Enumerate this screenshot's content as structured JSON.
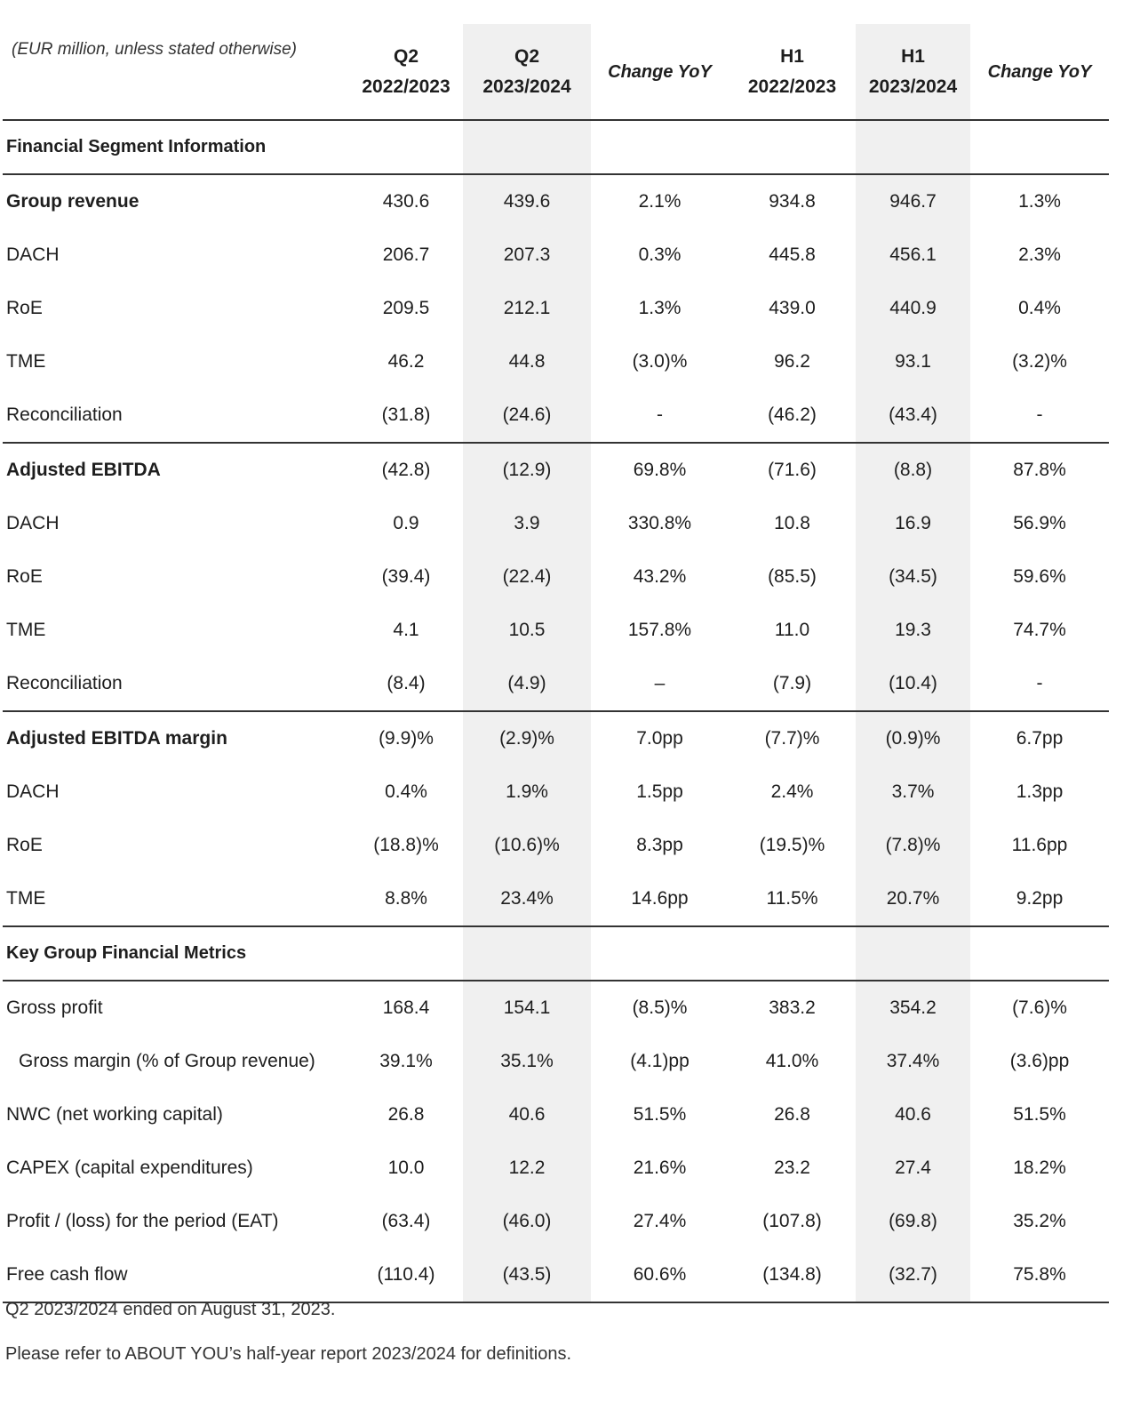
{
  "header": {
    "unit_note": "(EUR million, unless stated otherwise)",
    "columns": [
      {
        "l1": "Q2",
        "l2": "2022/2023"
      },
      {
        "l1": "Q2",
        "l2": "2023/2024"
      },
      {
        "l1": "Change YoY",
        "l2": ""
      },
      {
        "l1": "H1",
        "l2": "2022/2023"
      },
      {
        "l1": "H1",
        "l2": "2023/2024"
      },
      {
        "l1": "Change YoY",
        "l2": ""
      }
    ]
  },
  "colors": {
    "shaded_column": "#f0f0f0",
    "rule": "#333333"
  },
  "sections": [
    {
      "title": "Financial Segment Information",
      "groups": [
        {
          "rows": [
            {
              "label": "Group revenue",
              "bold": true,
              "values": [
                "430.6",
                "439.6",
                "2.1%",
                "934.8",
                "946.7",
                "1.3%"
              ]
            },
            {
              "label": "DACH",
              "values": [
                "206.7",
                "207.3",
                "0.3%",
                "445.8",
                "456.1",
                "2.3%"
              ]
            },
            {
              "label": "RoE",
              "values": [
                "209.5",
                "212.1",
                "1.3%",
                "439.0",
                "440.9",
                "0.4%"
              ]
            },
            {
              "label": "TME",
              "values": [
                "46.2",
                "44.8",
                "(3.0)%",
                "96.2",
                "93.1",
                "(3.2)%"
              ]
            },
            {
              "label": "Reconciliation",
              "values": [
                "(31.8)",
                "(24.6)",
                "-",
                "(46.2)",
                "(43.4)",
                "-"
              ]
            }
          ]
        },
        {
          "rows": [
            {
              "label": "Adjusted EBITDA",
              "bold": true,
              "values": [
                "(42.8)",
                "(12.9)",
                "69.8%",
                "(71.6)",
                "(8.8)",
                "87.8%"
              ]
            },
            {
              "label": "DACH",
              "values": [
                "0.9",
                "3.9",
                "330.8%",
                "10.8",
                "16.9",
                "56.9%"
              ]
            },
            {
              "label": "RoE",
              "values": [
                "(39.4)",
                "(22.4)",
                "43.2%",
                "(85.5)",
                "(34.5)",
                "59.6%"
              ]
            },
            {
              "label": "TME",
              "values": [
                "4.1",
                "10.5",
                "157.8%",
                "11.0",
                "19.3",
                "74.7%"
              ]
            },
            {
              "label": "Reconciliation",
              "values": [
                "(8.4)",
                "(4.9)",
                "–",
                "(7.9)",
                "(10.4)",
                "-"
              ]
            }
          ]
        },
        {
          "rows": [
            {
              "label": "Adjusted EBITDA margin",
              "bold": true,
              "values": [
                "(9.9)%",
                "(2.9)%",
                "7.0pp",
                "(7.7)%",
                "(0.9)%",
                "6.7pp"
              ]
            },
            {
              "label": "DACH",
              "values": [
                "0.4%",
                "1.9%",
                "1.5pp",
                "2.4%",
                "3.7%",
                "1.3pp"
              ]
            },
            {
              "label": "RoE",
              "values": [
                "(18.8)%",
                "(10.6)%",
                "8.3pp",
                "(19.5)%",
                "(7.8)%",
                "11.6pp"
              ]
            },
            {
              "label": "TME",
              "values": [
                "8.8%",
                "23.4%",
                "14.6pp",
                "11.5%",
                "20.7%",
                "9.2pp"
              ]
            }
          ]
        }
      ]
    },
    {
      "title": "Key Group Financial Metrics",
      "groups": [
        {
          "rows": [
            {
              "label": "Gross profit",
              "values": [
                "168.4",
                "154.1",
                "(8.5)%",
                "383.2",
                "354.2",
                "(7.6)%"
              ]
            },
            {
              "label": "Gross margin (% of Group revenue)",
              "indent": true,
              "values": [
                "39.1%",
                "35.1%",
                "(4.1)pp",
                "41.0%",
                "37.4%",
                "(3.6)pp"
              ]
            },
            {
              "label": "NWC (net working capital)",
              "values": [
                "26.8",
                "40.6",
                "51.5%",
                "26.8",
                "40.6",
                "51.5%"
              ]
            },
            {
              "label": "CAPEX (capital expenditures)",
              "values": [
                "10.0",
                "12.2",
                "21.6%",
                "23.2",
                "27.4",
                "18.2%"
              ]
            },
            {
              "label": "Profit / (loss) for the period (EAT)",
              "values": [
                "(63.4)",
                "(46.0)",
                "27.4%",
                "(107.8)",
                "(69.8)",
                "35.2%"
              ]
            },
            {
              "label": "Free cash flow",
              "values": [
                "(110.4)",
                "(43.5)",
                "60.6%",
                "(134.8)",
                "(32.7)",
                "75.8%"
              ]
            }
          ]
        }
      ]
    }
  ],
  "footnotes": [
    "Q2 2023/2024 ended on August 31, 2023.",
    "Please refer to ABOUT YOU’s half-year report 2023/2024 for definitions."
  ]
}
